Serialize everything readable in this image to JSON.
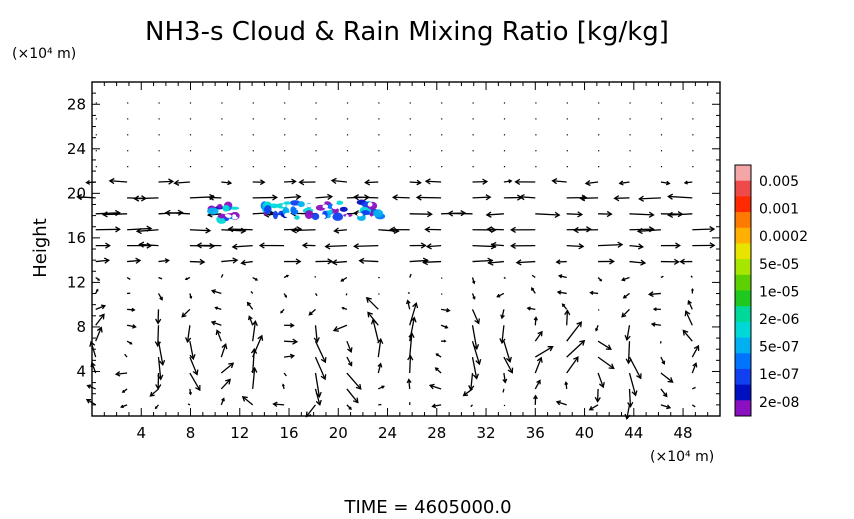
{
  "chart_data": {
    "type": "vector_contour",
    "title": "NH3-s Cloud & Rain Mixing Ratio [kg/kg]",
    "xlabel": "",
    "ylabel": "Height",
    "x_unit_label": "(×10⁴ m)",
    "y_unit_label": "(×10⁴ m)",
    "xlim": [
      0,
      51
    ],
    "ylim": [
      0,
      30
    ],
    "x_ticks": [
      4,
      8,
      12,
      16,
      20,
      24,
      28,
      32,
      36,
      40,
      44,
      48
    ],
    "y_ticks": [
      4,
      8,
      12,
      16,
      20,
      24,
      28
    ],
    "footer": "TIME = 4605000.0",
    "colorbar": {
      "labels": [
        "0.005",
        "0.001",
        "0.0002",
        "5e-05",
        "1e-05",
        "2e-06",
        "5e-07",
        "1e-07",
        "2e-08"
      ],
      "colors": [
        "#f4a6a6",
        "#ee4a4a",
        "#ff2a00",
        "#ff7a00",
        "#ffb000",
        "#e8e400",
        "#a6e600",
        "#5cd000",
        "#1ec81e",
        "#00d89a",
        "#00d8d8",
        "#00b0f0",
        "#0074ff",
        "#1040f0",
        "#0010c0",
        "#8a10c0"
      ]
    },
    "cloud_patches": [
      {
        "x_range": [
          9.6,
          11.8
        ],
        "y_range": [
          17.6,
          19.0
        ]
      },
      {
        "x_range": [
          13.8,
          23.8
        ],
        "y_range": [
          17.8,
          19.2
        ]
      }
    ]
  }
}
